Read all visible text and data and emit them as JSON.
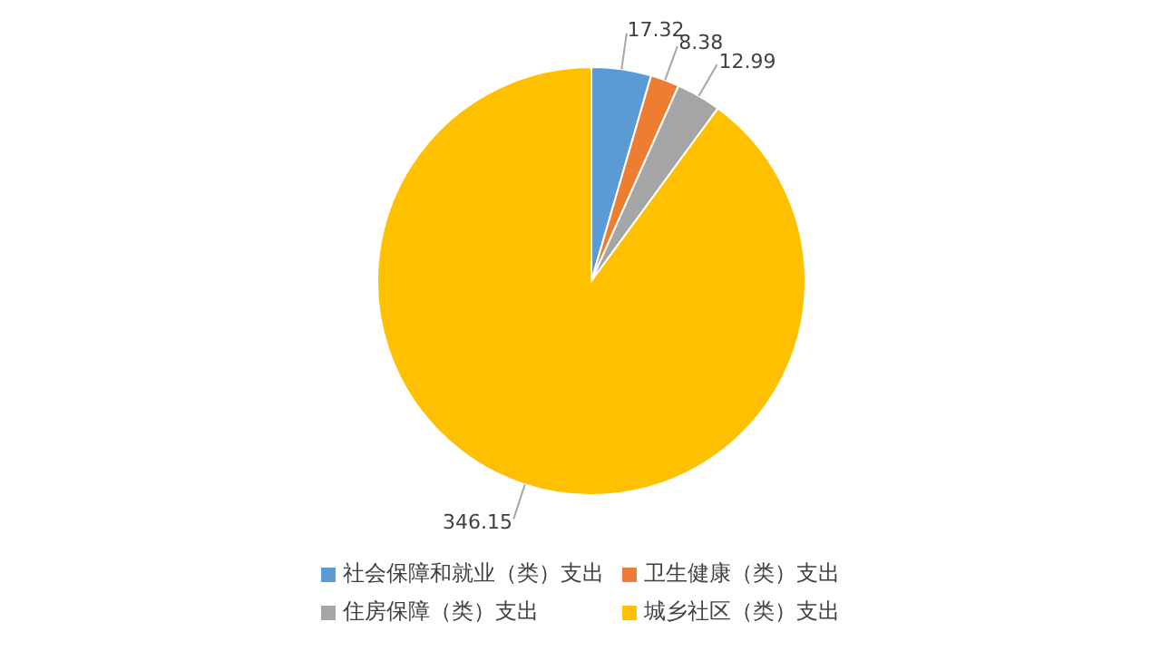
{
  "chart_data": {
    "type": "pie",
    "categories": [
      "社会保障和就业（类）支出",
      "卫生健康（类）支出",
      "住房保障（类）支出",
      "城乡社区（类）支出"
    ],
    "values": [
      17.32,
      8.38,
      12.99,
      346.15
    ],
    "colors": [
      "#5b9bd5",
      "#ed7d31",
      "#a5a5a5",
      "#ffc000"
    ],
    "data_labels": true,
    "legend": "bottom"
  }
}
